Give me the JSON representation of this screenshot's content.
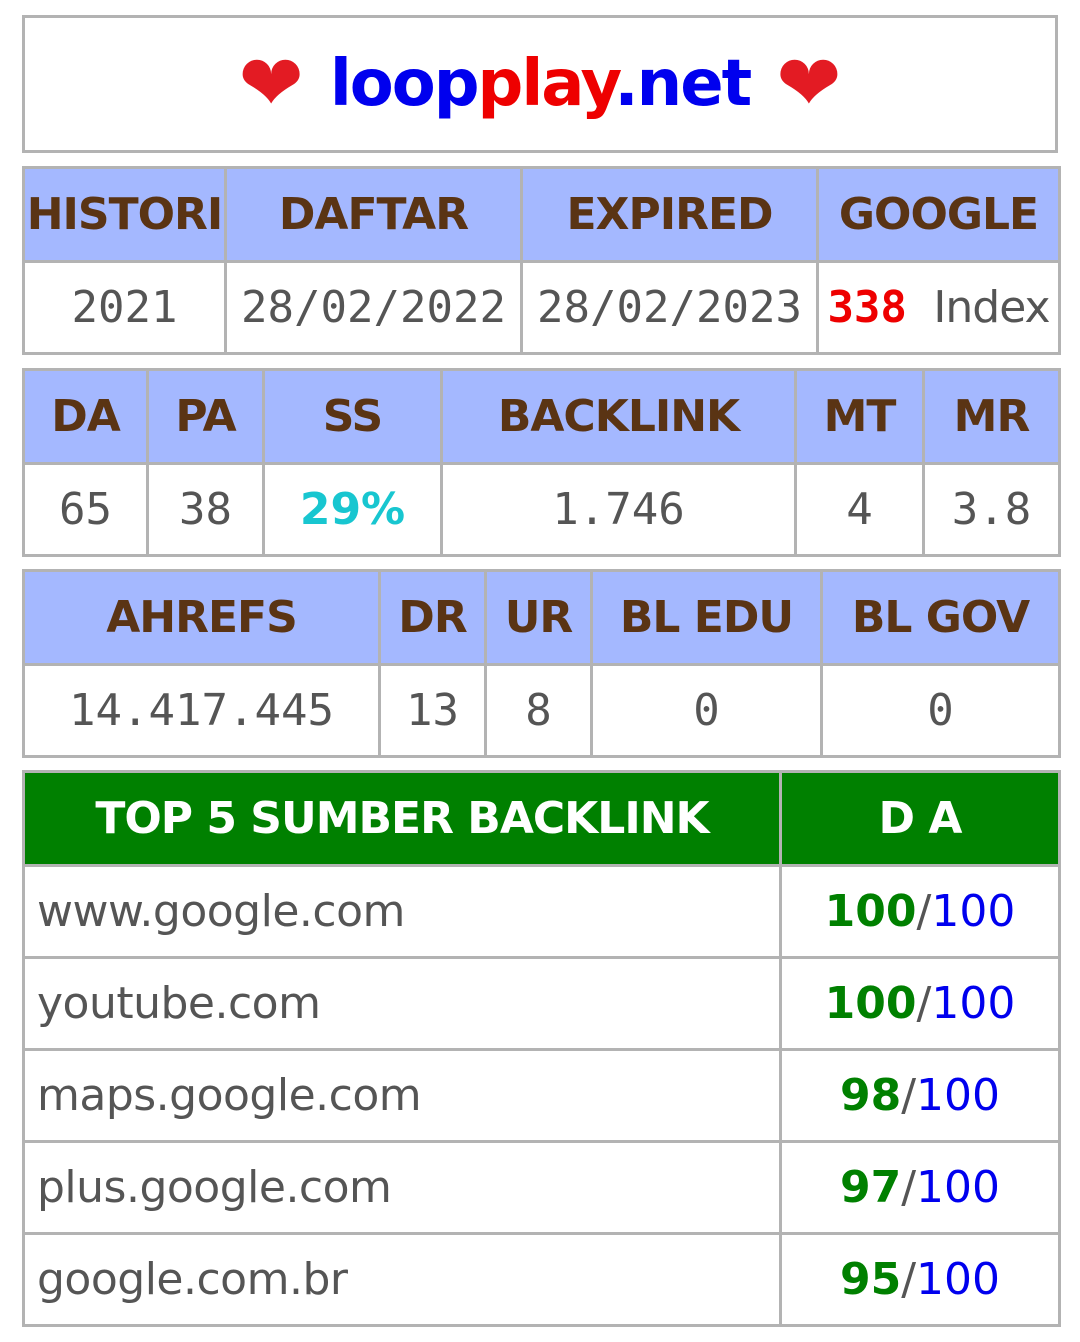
{
  "header": {
    "heart_left": "❤",
    "site_part1": "loop",
    "site_part2": "play",
    "site_part3": ".net",
    "heart_right": "❤"
  },
  "table1": {
    "headers": [
      "HISTORI",
      "DAFTAR",
      "EXPIRED",
      "GOOGLE"
    ],
    "values": {
      "histori": "2021",
      "daftar": "28/02/2022",
      "expired": "28/02/2023",
      "google_count": "338",
      "google_word": "Index"
    }
  },
  "table2": {
    "headers": [
      "DA",
      "PA",
      "SS",
      "BACKLINK",
      "MT",
      "MR"
    ],
    "values": [
      "65",
      "38",
      "29%",
      "1.746",
      "4",
      "3.8"
    ]
  },
  "table3": {
    "headers": [
      "AHREFS",
      "DR",
      "UR",
      "BL EDU",
      "BL GOV"
    ],
    "values": [
      "14.417.445",
      "13",
      "8",
      "0",
      "0"
    ]
  },
  "table4": {
    "headers": [
      "TOP 5 SUMBER BACKLINK",
      "D A"
    ],
    "rows": [
      {
        "source": "www.google.com",
        "da": "100",
        "max": "100"
      },
      {
        "source": "youtube.com",
        "da": "100",
        "max": "100"
      },
      {
        "source": "maps.google.com",
        "da": "98",
        "max": "100"
      },
      {
        "source": "plus.google.com",
        "da": "97",
        "max": "100"
      },
      {
        "source": "google.com.br",
        "da": "95",
        "max": "100"
      }
    ],
    "separator": "/"
  },
  "colors": {
    "header_bg": "#a4b8ff",
    "header_text": "#5a3414",
    "green_header": "#008000",
    "blue": "#0000ee",
    "red": "#ee0000",
    "cyan": "#18c6d0"
  }
}
